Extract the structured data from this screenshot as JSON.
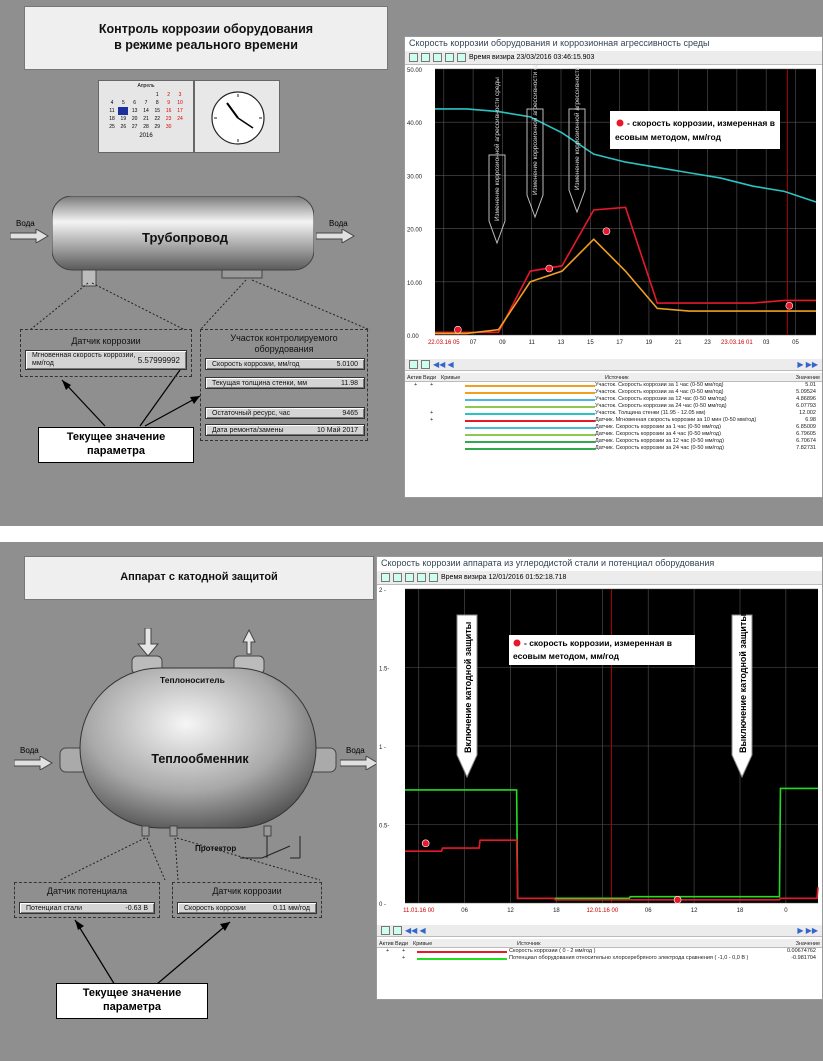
{
  "panel1": {
    "title_line1": "Контроль коррозии оборудования",
    "title_line2": "в режиме реального времени",
    "calendar": {
      "month": "Апрель",
      "year": "2016",
      "rows": [
        [
          "",
          "",
          "",
          "",
          "1",
          "2",
          "3"
        ],
        [
          "4",
          "5",
          "6",
          "7",
          "8",
          "9",
          "10"
        ],
        [
          "11",
          "12",
          "13",
          "14",
          "15",
          "16",
          "17"
        ],
        [
          "18",
          "19",
          "20",
          "21",
          "22",
          "23",
          "24"
        ],
        [
          "25",
          "26",
          "27",
          "28",
          "29",
          "30",
          ""
        ]
      ]
    },
    "water_in": "Вода",
    "water_out": "Вода",
    "pipeline": "Трубопровод",
    "sensor": {
      "header": "Датчик коррозии",
      "label": "Мгновенная скорость коррозии, мм/год",
      "value": "5.57999992"
    },
    "section": {
      "header": "Участок контролируемого оборудования",
      "rows": [
        {
          "label": "Скорость коррозии, мм/год",
          "value": "5.0100"
        },
        {
          "label": "Текущая толщина стенки, мм",
          "value": "11.98"
        },
        {
          "label": "Остаточный ресурс, час",
          "value": "9465"
        },
        {
          "label": "Дата ремонта/замены",
          "value": "10 Май 2017"
        }
      ]
    },
    "callout_line1": "Текущее значение",
    "callout_line2": "параметра",
    "window": {
      "title": "Скорость коррозии оборудования и коррозионная агрессивность среды",
      "toolbar_text": "Время визира 23/03/2016 03:46:15.903",
      "legend_text": "- скорость коррозии, измеренная весовым методом, мм/год",
      "annot1": "Изменение коррозионной агрессивности среды",
      "annot2": "Изменение коррозионной агрессивности среды",
      "annot3": "Изменение коррозионной агрессивности среды",
      "table_head": {
        "active": "Актив",
        "visible": "Види",
        "curves": "Кривые",
        "source": "Источник",
        "value": "Значение"
      }
    }
  },
  "panel2": {
    "title": "Аппарат с катодной защитой",
    "water_in": "Вода",
    "water_out": "Вода",
    "heat_carrier": "Теплоноситель",
    "exchanger": "Теплообменник",
    "protector": "Протектор",
    "potential_sensor": {
      "header": "Датчик потенциала",
      "label": "Потенциал стали",
      "value": "-0.63",
      "unit": "В"
    },
    "corrosion_sensor": {
      "header": "Датчик коррозии",
      "label": "Скорость коррозии",
      "value": "0.11",
      "unit": "мм/год"
    },
    "callout_line1": "Текущее значение",
    "callout_line2": "параметра",
    "window": {
      "title": "Скорость коррозии аппарата из углеродистой стали и потенциал оборудования",
      "toolbar_text": "Время визира 12/01/2016 01:52:18.718",
      "legend_text": "- скорость коррозии, измеренная весовым методом, мм/год",
      "annot_on": "Включение катодной защиты",
      "annot_off": "Выключение катодной защиты",
      "table_head": {
        "active": "Актив",
        "visible": "Види",
        "curves": "Кривые",
        "source": "Источник",
        "value": "Значение"
      }
    }
  },
  "chart_data": [
    {
      "type": "line",
      "title": "Скорость коррозии оборудования и коррозионная агрессивность среды",
      "ylim": [
        0,
        50
      ],
      "yticks": [
        "50.00",
        "40.00",
        "30.00",
        "20.00",
        "10.00",
        "0.00"
      ],
      "xticks": [
        "22.03.16 05",
        "07",
        "09",
        "11",
        "13",
        "15",
        "17",
        "19",
        "21",
        "23",
        "23.03.16 01",
        "03",
        "05"
      ],
      "series": [
        {
          "color": "#2bc4c4",
          "values": [
            42.5,
            42.5,
            42,
            41,
            38,
            34,
            32.5,
            31.5,
            30.5,
            29.5,
            28,
            27,
            25
          ]
        },
        {
          "color": "#e8182b",
          "values": [
            0.5,
            0.5,
            0.5,
            12,
            13,
            23.5,
            24,
            6,
            6,
            6,
            6,
            6.5,
            6.5
          ]
        },
        {
          "color": "#f0a020",
          "values": [
            0.3,
            0.3,
            1,
            10,
            12,
            18,
            12,
            5,
            4.5,
            4.5,
            4.5,
            4.5,
            4.5
          ]
        }
      ],
      "points": [
        {
          "x": "06",
          "y": 1
        },
        {
          "x": "10",
          "y": 12.5
        },
        {
          "x": "13.5",
          "y": 19.5
        },
        {
          "x": "03",
          "y": 5.5
        }
      ],
      "table": [
        {
          "active": "+",
          "visible": "+",
          "color": "#f0a020",
          "source": "Участок. Скорость коррозии за 1 час (0-50 мм/год)",
          "value": "5.01"
        },
        {
          "active": "",
          "visible": "",
          "color": "#f0a020",
          "source": "Участок. Скорость коррозии за 4 час (0-50 мм/год)",
          "value": "5.09524"
        },
        {
          "active": "",
          "visible": "",
          "color": "#49b7e0",
          "source": "Участок. Скорость коррозии за 12 час (0-50 мм/год)",
          "value": "4.86896"
        },
        {
          "active": "",
          "visible": "",
          "color": "#8fc84f",
          "source": "Участок. Скорость коррозии за 24 час (0-50 мм/год)",
          "value": "6.07793"
        },
        {
          "active": "",
          "visible": "+",
          "color": "#2bc4c4",
          "source": "Участок. Толщина стенки (11.95 - 12.05 мм)",
          "value": "12.002"
        },
        {
          "active": "",
          "visible": "+",
          "color": "#e8182b",
          "source": "Датчик. Мгновенная скорость коррозии за 10 мин (0-50 мм/год)",
          "value": "6.98"
        },
        {
          "active": "",
          "visible": "",
          "color": "#49b7e0",
          "source": "Датчик. Скорость коррозии за 1 час (0-50 мм/год)",
          "value": "6.85009"
        },
        {
          "active": "",
          "visible": "",
          "color": "#8fc84f",
          "source": "Датчик. Скорость коррозии за 4 час (0-50 мм/год)",
          "value": "6.79605"
        },
        {
          "active": "",
          "visible": "",
          "color": "#2fa84f",
          "source": "Датчик. Скорость коррозии за 12 час (0-50 мм/год)",
          "value": "6.70674"
        },
        {
          "active": "",
          "visible": "",
          "color": "#2fa84f",
          "source": "Датчик. Скорость коррозии за 24 час (0-50 мм/год)",
          "value": "7.82731"
        }
      ]
    },
    {
      "type": "line",
      "title": "Скорость коррозии аппарата из углеродистой стали и потенциал оборудования",
      "ylim": [
        0,
        2
      ],
      "yticks": [
        "2 -",
        "1.5-",
        "1 -",
        "0.5-",
        "0 -"
      ],
      "xticks": [
        "11.01.16 00",
        "06",
        "12",
        "18",
        "12.01.16 00",
        "06",
        "12",
        "18",
        "0"
      ],
      "series": [
        {
          "color": "#22dd22",
          "values": [
            0.72,
            0.72,
            0.72,
            0.03,
            0.03,
            0.03,
            0.04,
            0.04,
            0.04,
            0.04,
            0.73,
            0.73
          ]
        },
        {
          "color": "#e8182b",
          "values": [
            0.33,
            0.35,
            0.4,
            0.03,
            0.02,
            0.02,
            0.02,
            0.02,
            0.02,
            0.02,
            0.03,
            0.1
          ]
        }
      ],
      "points": [
        {
          "x": "02",
          "y": 0.38
        },
        {
          "x": "06",
          "y": 0.02
        }
      ],
      "table": [
        {
          "active": "+",
          "visible": "+",
          "color": "#e8182b",
          "source": "Скорость коррозии ( 0 - 2 мм/год )",
          "value": "0.00674762"
        },
        {
          "active": "",
          "visible": "+",
          "color": "#22dd22",
          "source": "Потенциал оборудования относительно хлорсеребряного электрода сравнения ( -1,0 - 0,0 В )",
          "value": "-0.981704"
        }
      ]
    }
  ]
}
